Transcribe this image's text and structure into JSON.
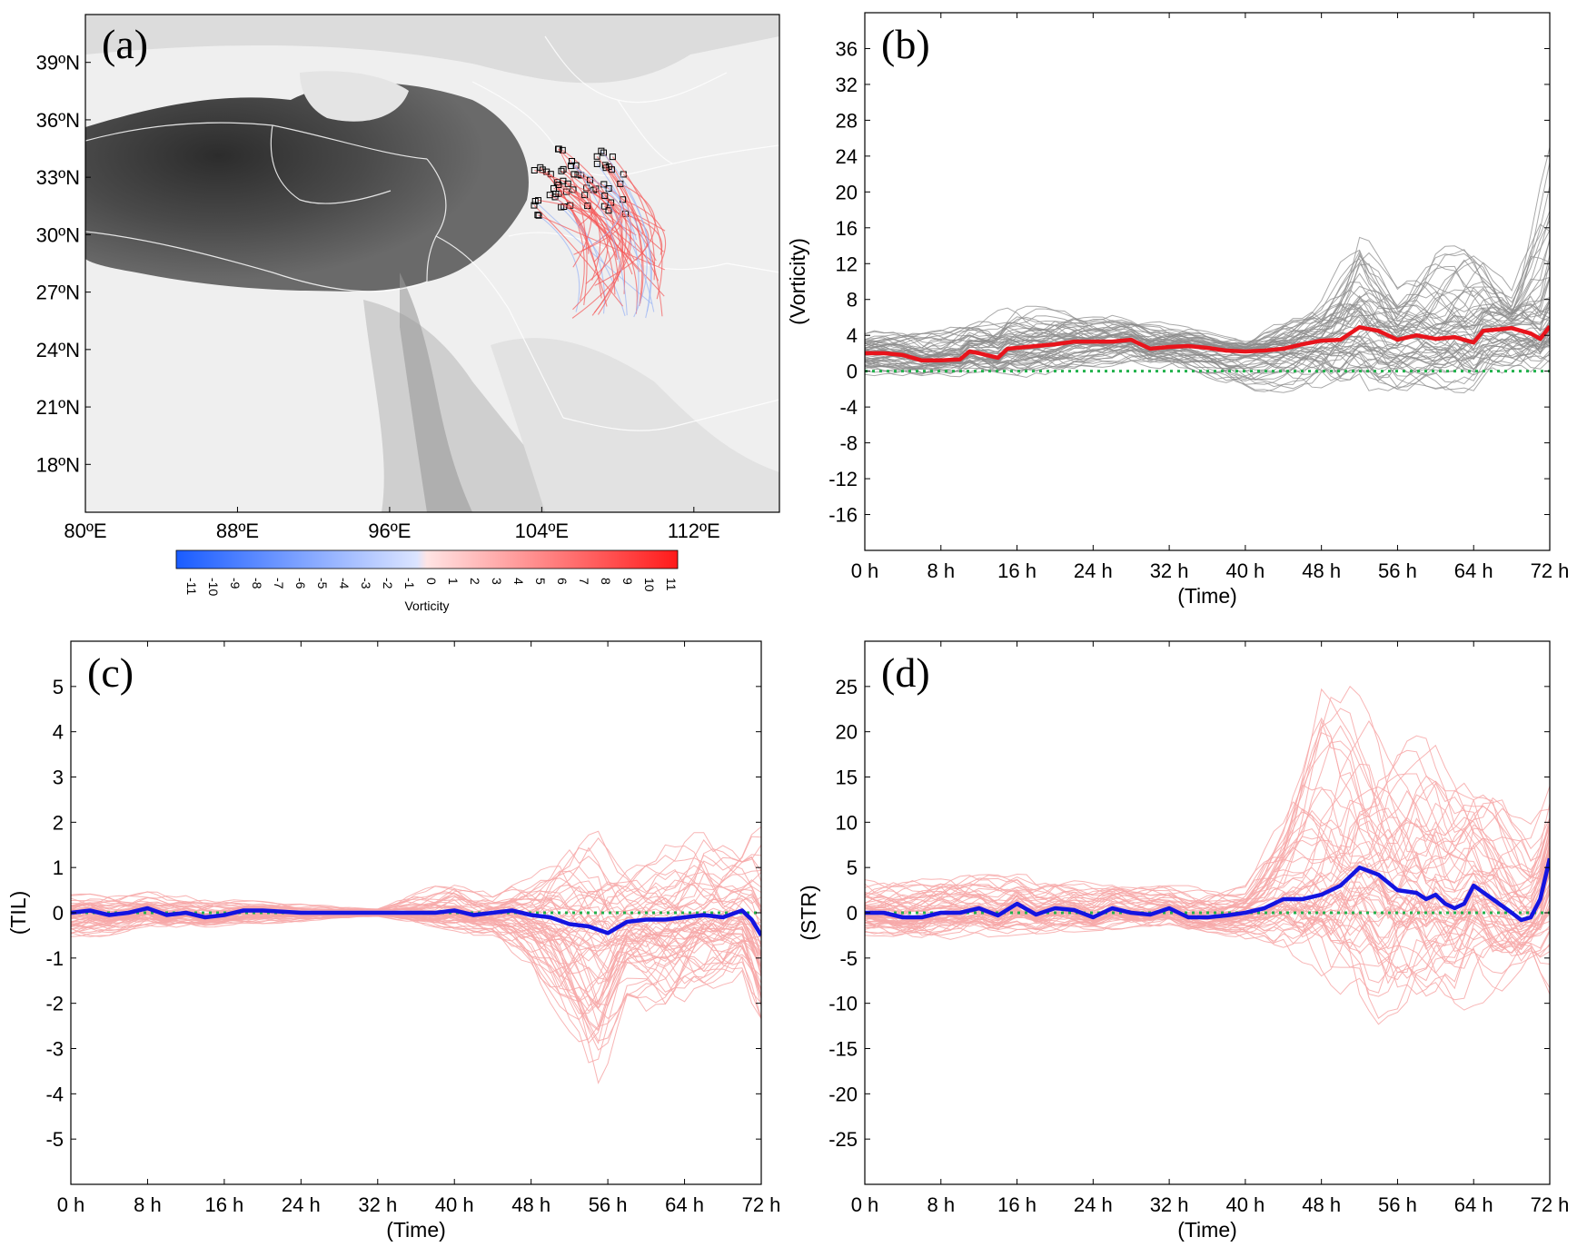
{
  "colors": {
    "mean_b": "#e8141c",
    "mean_cd": "#1414e0",
    "ensemble_b": "#8c8c8c",
    "ensemble_cd": "#f7a8a8",
    "zero_line": "#22b14c",
    "terrain_dark": "#3a3a3a",
    "terrain_light": "#f2f2f2",
    "cbar_neg": "#1a5cff",
    "cbar_pos": "#ff1a1a"
  },
  "chart_data": [
    {
      "id": "a",
      "type": "map",
      "panel_label": "(a)",
      "lon_ticks": [
        "80ºE",
        "88ºE",
        "96ºE",
        "104ºE",
        "112ºE"
      ],
      "lat_ticks": [
        "39ºN",
        "36ºN",
        "33ºN",
        "30ºN",
        "27ºN",
        "24ºN",
        "21ºN",
        "18ºN"
      ],
      "colorbar": {
        "title": "Vorticity",
        "ticks": [
          "-11",
          "-10",
          "-9",
          "-8",
          "-7",
          "-6",
          "-5",
          "-4",
          "-3",
          "-2",
          "-1",
          "0",
          "1",
          "2",
          "3",
          "4",
          "5",
          "6",
          "7",
          "8",
          "9",
          "10",
          "11"
        ]
      },
      "trajectories": {
        "count": 60,
        "start_lon_range": [
          103.5,
          108.5
        ],
        "start_lat_range": [
          31.0,
          34.5
        ],
        "end_lon_range": [
          105.5,
          110.5
        ],
        "end_lat_range": [
          25.5,
          30.5
        ],
        "vorticity_sign": "mostly positive"
      }
    },
    {
      "id": "b",
      "type": "line",
      "panel_label": "(b)",
      "xlabel": "(Time)",
      "ylabel": "(Vorticity)",
      "x_ticks": [
        "0 h",
        "8 h",
        "16 h",
        "24 h",
        "32 h",
        "40 h",
        "48 h",
        "56 h",
        "64 h",
        "72 h"
      ],
      "xlim": [
        0,
        72
      ],
      "ylim": [
        -20,
        40
      ],
      "y_ticks": [
        36,
        32,
        28,
        24,
        20,
        16,
        12,
        8,
        4,
        0,
        -4,
        -8,
        -12,
        -16
      ],
      "zero_line": true,
      "ensemble_size": 60,
      "mean_series": {
        "x": [
          0,
          2,
          4,
          6,
          8,
          10,
          11,
          12,
          14,
          15,
          16,
          18,
          20,
          22,
          24,
          26,
          28,
          30,
          32,
          34,
          36,
          38,
          40,
          42,
          44,
          46,
          48,
          50,
          52,
          54,
          56,
          58,
          60,
          62,
          64,
          65,
          66,
          68,
          70,
          71,
          72
        ],
        "values": [
          2.0,
          2.0,
          1.8,
          1.2,
          1.2,
          1.3,
          2.2,
          2.0,
          1.5,
          2.5,
          2.6,
          2.8,
          3.0,
          3.3,
          3.3,
          3.3,
          3.5,
          2.5,
          2.7,
          2.8,
          2.6,
          2.3,
          2.2,
          2.3,
          2.5,
          3.0,
          3.4,
          3.5,
          4.9,
          4.5,
          3.5,
          4.0,
          3.6,
          3.8,
          3.2,
          4.5,
          4.6,
          4.8,
          4.2,
          3.6,
          5.0
        ]
      },
      "ensemble_envelope": {
        "x": [
          0,
          8,
          16,
          24,
          32,
          40,
          48,
          52,
          56,
          60,
          64,
          68,
          72
        ],
        "upper": [
          4.5,
          5.0,
          7.5,
          6.5,
          5.5,
          3.5,
          8.0,
          17.0,
          10.0,
          14.0,
          15.0,
          9.0,
          26.0
        ],
        "lower": [
          -0.5,
          -0.5,
          -1.0,
          0.5,
          0.0,
          -2.0,
          -3.5,
          -3.0,
          -2.5,
          -2.0,
          -3.0,
          -2.0,
          1.0
        ]
      }
    },
    {
      "id": "c",
      "type": "line",
      "panel_label": "(c)",
      "xlabel": "(Time)",
      "ylabel": "(TIL)",
      "x_ticks": [
        "0 h",
        "8 h",
        "16 h",
        "24 h",
        "32 h",
        "40 h",
        "48 h",
        "56 h",
        "64 h",
        "72 h"
      ],
      "xlim": [
        0,
        72
      ],
      "ylim": [
        -6,
        6
      ],
      "y_ticks": [
        5,
        4,
        3,
        2,
        1,
        0,
        -1,
        -2,
        -3,
        -4,
        -5
      ],
      "zero_line": true,
      "ensemble_size": 60,
      "mean_series": {
        "x": [
          0,
          2,
          4,
          6,
          8,
          10,
          12,
          14,
          16,
          18,
          20,
          24,
          28,
          32,
          36,
          38,
          40,
          42,
          44,
          46,
          48,
          50,
          52,
          54,
          56,
          58,
          60,
          62,
          64,
          66,
          68,
          70,
          71,
          72
        ],
        "values": [
          0.0,
          0.05,
          -0.05,
          0.0,
          0.1,
          -0.05,
          0.0,
          -0.1,
          -0.05,
          0.05,
          0.05,
          0.0,
          0.0,
          0.0,
          0.0,
          0.0,
          0.05,
          -0.05,
          0.0,
          0.05,
          -0.05,
          -0.1,
          -0.25,
          -0.3,
          -0.45,
          -0.2,
          -0.15,
          -0.15,
          -0.1,
          -0.05,
          -0.1,
          0.05,
          -0.15,
          -0.5
        ]
      },
      "ensemble_envelope": {
        "x": [
          0,
          8,
          16,
          24,
          32,
          40,
          44,
          48,
          52,
          55,
          58,
          62,
          66,
          70,
          72
        ],
        "upper": [
          0.4,
          0.5,
          0.3,
          0.2,
          0.1,
          0.8,
          0.4,
          0.8,
          1.6,
          1.8,
          1.2,
          1.5,
          2.0,
          1.5,
          2.0
        ],
        "lower": [
          -0.6,
          -0.4,
          -0.3,
          -0.2,
          -0.1,
          -0.4,
          -0.6,
          -1.5,
          -3.0,
          -4.0,
          -2.0,
          -2.5,
          -2.0,
          -1.5,
          -2.8
        ]
      }
    },
    {
      "id": "d",
      "type": "line",
      "panel_label": "(d)",
      "xlabel": "(Time)",
      "ylabel": "(STR)",
      "x_ticks": [
        "0 h",
        "8 h",
        "16 h",
        "24 h",
        "32 h",
        "40 h",
        "48 h",
        "56 h",
        "64 h",
        "72 h"
      ],
      "xlim": [
        0,
        72
      ],
      "ylim": [
        -30,
        30
      ],
      "y_ticks": [
        25,
        20,
        15,
        10,
        5,
        0,
        -5,
        -10,
        -15,
        -20,
        -25
      ],
      "zero_line": true,
      "ensemble_size": 60,
      "mean_series": {
        "x": [
          0,
          2,
          4,
          6,
          8,
          10,
          12,
          14,
          16,
          18,
          20,
          22,
          24,
          26,
          28,
          30,
          32,
          34,
          36,
          38,
          40,
          42,
          44,
          46,
          48,
          50,
          52,
          54,
          56,
          58,
          59,
          60,
          61,
          62,
          63,
          64,
          66,
          68,
          69,
          70,
          71,
          72
        ],
        "values": [
          0.0,
          0.0,
          -0.5,
          -0.5,
          0.0,
          0.0,
          0.5,
          -0.3,
          1.0,
          -0.2,
          0.5,
          0.3,
          -0.5,
          0.5,
          0.0,
          -0.2,
          0.5,
          -0.5,
          -0.5,
          -0.3,
          0.0,
          0.5,
          1.5,
          1.5,
          2.0,
          3.0,
          5.0,
          4.2,
          2.5,
          2.2,
          1.5,
          2.0,
          1.0,
          0.5,
          1.0,
          3.0,
          1.5,
          0.0,
          -0.8,
          -0.5,
          1.5,
          6.0
        ]
      },
      "ensemble_envelope": {
        "x": [
          0,
          8,
          16,
          24,
          32,
          40,
          44,
          48,
          51,
          54,
          58,
          62,
          66,
          70,
          72
        ],
        "upper": [
          4.0,
          4.0,
          4.5,
          3.5,
          3.0,
          3.0,
          11.0,
          25.0,
          25.0,
          22.0,
          21.0,
          16.0,
          14.0,
          10.0,
          14.0
        ],
        "lower": [
          -2.5,
          -3.0,
          -2.5,
          -2.0,
          -1.5,
          -3.0,
          -4.0,
          -7.0,
          -10.0,
          -13.0,
          -9.0,
          -11.0,
          -10.0,
          -5.0,
          -9.0
        ]
      }
    }
  ]
}
